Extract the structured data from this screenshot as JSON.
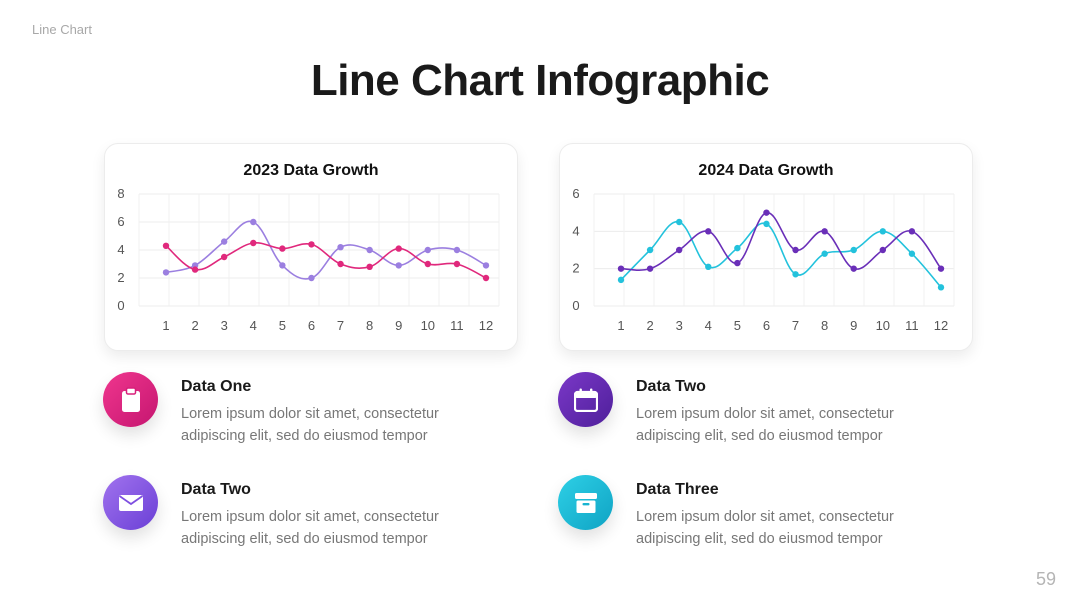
{
  "header": {
    "section_label": "Line Chart",
    "title": "Line Chart Infographic"
  },
  "colors": {
    "magenta": "#e0287c",
    "lilac": "#9b7fe0",
    "purple": "#6a2fb8",
    "cyan": "#23c2dc",
    "gradient_pink": [
      "#f0368e",
      "#c51670"
    ],
    "gradient_violet": [
      "#a173ee",
      "#6a3fd6"
    ],
    "gradient_purple": [
      "#7b38c8",
      "#4e1f9a"
    ],
    "gradient_teal": [
      "#2ed0e6",
      "#0fa3c4"
    ]
  },
  "chart_data": [
    {
      "type": "line",
      "title": "2023 Data Growth",
      "categories": [
        "1",
        "2",
        "3",
        "4",
        "5",
        "6",
        "7",
        "8",
        "9",
        "10",
        "11",
        "12"
      ],
      "ylim": [
        0,
        8
      ],
      "yticks": [
        0,
        2,
        4,
        6,
        8
      ],
      "grid": true,
      "series": [
        {
          "color": "#9b7fe0",
          "values": [
            2.4,
            2.9,
            4.6,
            6.0,
            2.9,
            2.0,
            4.2,
            4.0,
            2.9,
            4.0,
            4.0,
            2.9
          ]
        },
        {
          "color": "#e0287c",
          "values": [
            4.3,
            2.6,
            3.5,
            4.5,
            4.1,
            4.4,
            3.0,
            2.8,
            4.1,
            3.0,
            3.0,
            2.0
          ]
        }
      ]
    },
    {
      "type": "line",
      "title": "2024 Data Growth",
      "categories": [
        "1",
        "2",
        "3",
        "4",
        "5",
        "6",
        "7",
        "8",
        "9",
        "10",
        "11",
        "12"
      ],
      "ylim": [
        0,
        6
      ],
      "yticks": [
        0,
        2,
        4,
        6
      ],
      "grid": true,
      "series": [
        {
          "color": "#23c2dc",
          "values": [
            1.4,
            3.0,
            4.5,
            2.1,
            3.1,
            4.4,
            1.7,
            2.8,
            3.0,
            4.0,
            2.8,
            1.0
          ]
        },
        {
          "color": "#6a2fb8",
          "values": [
            2.0,
            2.0,
            3.0,
            4.0,
            2.3,
            5.0,
            3.0,
            4.0,
            2.0,
            3.0,
            4.0,
            2.0
          ]
        }
      ]
    }
  ],
  "items": [
    {
      "title": "Data One",
      "text": "Lorem ipsum dolor sit amet, consectetur adipiscing elit, sed do eiusmod tempor",
      "icon": "clipboard-icon"
    },
    {
      "title": "Data Two",
      "text": "Lorem ipsum dolor sit amet, consectetur adipiscing elit, sed do eiusmod tempor",
      "icon": "envelope-icon"
    },
    {
      "title": "Data Two",
      "text": "Lorem ipsum dolor sit amet, consectetur adipiscing elit, sed do eiusmod tempor",
      "icon": "calendar-icon"
    },
    {
      "title": "Data Three",
      "text": "Lorem ipsum dolor sit amet, consectetur adipiscing elit, sed do eiusmod tempor",
      "icon": "archive-box-icon"
    }
  ],
  "footer": {
    "page_number": "59"
  }
}
